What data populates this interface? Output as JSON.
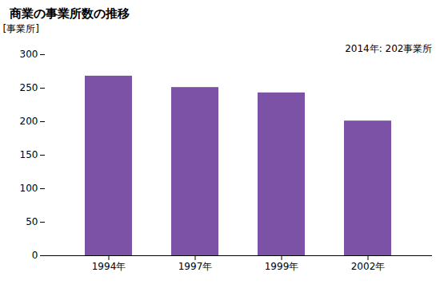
{
  "chart_data": {
    "type": "bar",
    "title": "商業の事業所数の推移",
    "ylabel": "[事業所]",
    "annotation": "2014年: 202事業所",
    "categories": [
      "1994年",
      "1997年",
      "1999年",
      "2002年"
    ],
    "values": [
      268,
      251,
      243,
      201
    ],
    "color": "#7B52A6",
    "ylim": [
      0,
      300
    ],
    "yticks": [
      0,
      50,
      100,
      150,
      200,
      250,
      300
    ],
    "grid": false
  }
}
